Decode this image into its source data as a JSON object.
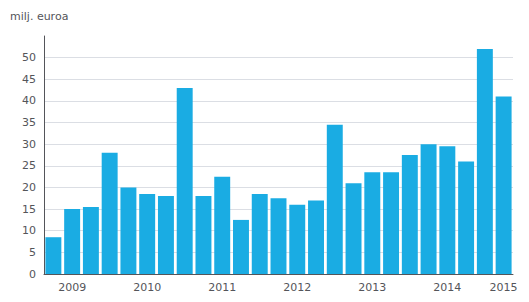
{
  "chart_data": {
    "type": "bar",
    "ylabel": "milj. euroa",
    "categories": [
      null,
      "2009",
      null,
      null,
      null,
      "2010",
      null,
      null,
      null,
      "2011",
      null,
      null,
      null,
      "2012",
      null,
      null,
      null,
      "2013",
      null,
      null,
      null,
      "2014",
      null,
      null,
      "2015"
    ],
    "values": [
      8.5,
      15.0,
      15.5,
      28.0,
      20.0,
      18.5,
      18.0,
      43.0,
      18.0,
      22.5,
      12.5,
      18.5,
      17.5,
      16.0,
      17.0,
      34.5,
      21.0,
      23.5,
      23.5,
      27.5,
      30.0,
      29.5,
      26.0,
      52.0,
      41.0
    ],
    "color": "#1aace3",
    "ylim": [
      0,
      55
    ],
    "yticks": [
      0,
      5,
      10,
      15,
      20,
      25,
      30,
      35,
      40,
      45,
      50
    ],
    "grid": true
  }
}
